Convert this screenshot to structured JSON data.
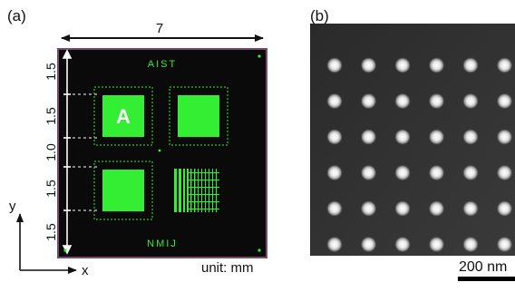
{
  "panel_a": {
    "label": "(a)",
    "top_dimension": "7",
    "side_dimensions": [
      "1.5",
      "1.5",
      "1.0",
      "1.5",
      "1.5"
    ],
    "axis_y": "y",
    "axis_x": "x",
    "unit": "unit: mm",
    "chip_top_text": "AIST",
    "chip_bottom_text": "NMIJ",
    "pad_letter": "A",
    "colors": {
      "chip": "#0a0a0a",
      "chip_border": "#7a4a6a",
      "pattern": "#33ee33",
      "guide": "#ffffff"
    }
  },
  "panel_b": {
    "label": "(b)",
    "scale_label": "200 nm",
    "dot_rows": 6,
    "dot_cols": 6
  }
}
